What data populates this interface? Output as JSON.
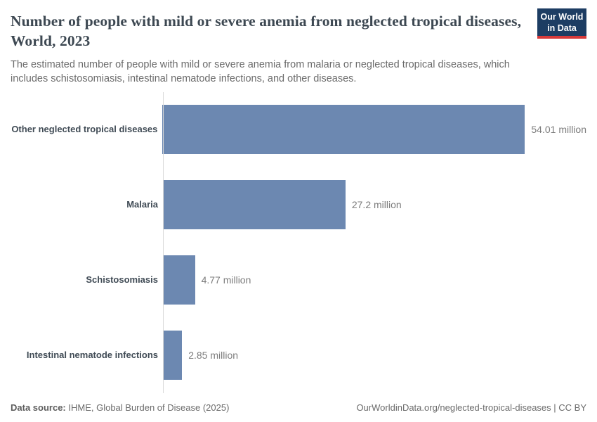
{
  "header": {
    "title": "Number of people with mild or severe anemia from neglected tropical diseases, World, 2023",
    "subtitle": "The estimated number of people with mild or severe anemia from malaria or neglected tropical diseases, which includes schistosomiasis, intestinal nematode infections, and other diseases.",
    "logo": {
      "line1": "Our World",
      "line2": "in Data",
      "bg_color": "#1d3d63",
      "accent_color": "#d73a3a"
    }
  },
  "chart_data": {
    "type": "bar",
    "orientation": "horizontal",
    "title": "Number of people with mild or severe anemia from neglected tropical diseases, World, 2023",
    "categories": [
      "Other neglected tropical diseases",
      "Malaria",
      "Schistosomiasis",
      "Intestinal nematode infections"
    ],
    "values": [
      54.01,
      27.2,
      4.77,
      2.85
    ],
    "value_labels": [
      "54.01 million",
      "27.2 million",
      "4.77 million",
      "2.85 million"
    ],
    "unit": "million",
    "xlim": [
      0,
      54.01
    ],
    "bar_color": "#6c88b1",
    "grid": false,
    "legend": false
  },
  "footer": {
    "source_label": "Data source:",
    "source_text": " IHME, Global Burden of Disease (2025)",
    "link_text": "OurWorldinData.org/neglected-tropical-diseases | CC BY"
  }
}
